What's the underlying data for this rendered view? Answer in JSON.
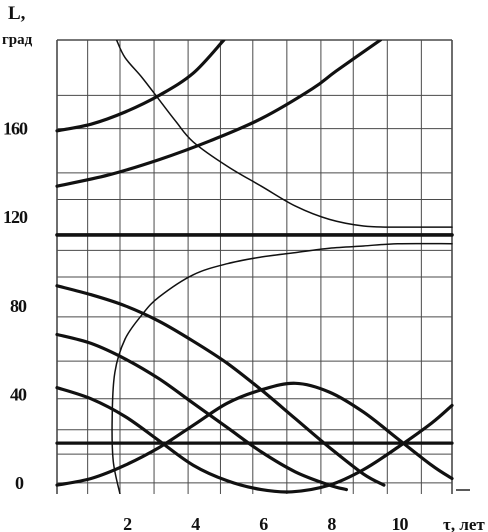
{
  "chart_data": {
    "type": "line",
    "ylabel": "L,",
    "yunit": "град",
    "xlabel": "τ, лет",
    "xlim": [
      0,
      11.6
    ],
    "ylim": [
      -5,
      200
    ],
    "x_ticks": [
      {
        "value": 2,
        "label": "2"
      },
      {
        "value": 4,
        "label": "4"
      },
      {
        "value": 6,
        "label": "6"
      },
      {
        "value": 8,
        "label": "8"
      },
      {
        "value": 10,
        "label": "10"
      }
    ],
    "y_ticks": [
      {
        "value": 0,
        "label": "0"
      },
      {
        "value": 40,
        "label": "40"
      },
      {
        "value": 80,
        "label": "80"
      },
      {
        "value": 120,
        "label": "120"
      },
      {
        "value": 160,
        "label": "160"
      }
    ],
    "grid": true,
    "grid_x": [
      0,
      0.9,
      1.85,
      2.85,
      3.85,
      4.8,
      5.75,
      6.75,
      7.75,
      8.7,
      9.7,
      10.7,
      11.6
    ],
    "grid_y": [
      0,
      13,
      24,
      38,
      55,
      75,
      93,
      105,
      128,
      140,
      160,
      175,
      200
    ],
    "series": [
      {
        "width": 3.2,
        "points": [
          [
            0,
            159
          ],
          [
            1,
            162
          ],
          [
            2,
            167.5
          ],
          [
            3,
            175
          ],
          [
            4,
            185
          ],
          [
            4.9,
            200
          ]
        ]
      },
      {
        "width": 3.2,
        "points": [
          [
            0,
            134
          ],
          [
            1.5,
            139
          ],
          [
            3,
            146
          ],
          [
            4.5,
            154.5
          ],
          [
            6,
            164.5
          ],
          [
            7.5,
            178
          ],
          [
            8.2,
            186
          ],
          [
            9.5,
            200
          ]
        ]
      },
      {
        "width": 3.6,
        "points": [
          [
            0,
            112
          ],
          [
            11.6,
            112
          ]
        ]
      },
      {
        "width": 3.2,
        "points": [
          [
            0,
            18
          ],
          [
            11.6,
            18
          ]
        ]
      },
      {
        "width": 3.2,
        "points": [
          [
            0,
            89
          ],
          [
            1,
            85
          ],
          [
            2,
            80
          ],
          [
            3,
            73
          ],
          [
            4,
            64
          ],
          [
            5,
            54
          ],
          [
            6,
            42
          ],
          [
            7,
            29
          ],
          [
            8,
            16
          ],
          [
            9,
            4
          ],
          [
            9.6,
            -1
          ]
        ]
      },
      {
        "width": 3.2,
        "points": [
          [
            0,
            67
          ],
          [
            1,
            63
          ],
          [
            2,
            56
          ],
          [
            3,
            47
          ],
          [
            4,
            36
          ],
          [
            5,
            25
          ],
          [
            6,
            14
          ],
          [
            7,
            5
          ],
          [
            8,
            -1
          ],
          [
            8.5,
            -3
          ]
        ]
      },
      {
        "width": 3.2,
        "points": [
          [
            0,
            43
          ],
          [
            1,
            38
          ],
          [
            2,
            30
          ],
          [
            3,
            19
          ],
          [
            4,
            8
          ],
          [
            5,
            1
          ],
          [
            6,
            -3
          ],
          [
            6.9,
            -4
          ],
          [
            8,
            -1
          ],
          [
            9,
            6
          ],
          [
            10,
            16
          ],
          [
            11,
            27
          ],
          [
            11.6,
            35
          ]
        ]
      },
      {
        "width": 3.2,
        "points": [
          [
            0,
            -1
          ],
          [
            1,
            2
          ],
          [
            2,
            8
          ],
          [
            3,
            16
          ],
          [
            4,
            26
          ],
          [
            5,
            36
          ],
          [
            6,
            42
          ],
          [
            7,
            45
          ],
          [
            8,
            41
          ],
          [
            9,
            32
          ],
          [
            10,
            20
          ],
          [
            11,
            8
          ],
          [
            11.6,
            2
          ]
        ]
      },
      {
        "width": 1.5,
        "points": [
          [
            1.75,
            200
          ],
          [
            2,
            192
          ],
          [
            2.5,
            183
          ],
          [
            3,
            173
          ],
          [
            3.5,
            163
          ],
          [
            4,
            154
          ],
          [
            5,
            143
          ],
          [
            6,
            134
          ],
          [
            7,
            125
          ],
          [
            8,
            119
          ],
          [
            9,
            116
          ],
          [
            10,
            115.5
          ],
          [
            11.6,
            115.5
          ]
        ]
      },
      {
        "width": 1.5,
        "points": [
          [
            1.85,
            -5
          ],
          [
            1.65,
            10
          ],
          [
            1.62,
            30
          ],
          [
            1.7,
            50
          ],
          [
            2,
            65
          ],
          [
            2.5,
            76
          ],
          [
            3,
            84
          ],
          [
            4,
            94
          ],
          [
            5,
            99
          ],
          [
            6,
            102
          ],
          [
            7,
            104
          ],
          [
            8,
            106
          ],
          [
            9,
            107
          ],
          [
            10,
            108
          ],
          [
            11.6,
            108
          ]
        ]
      }
    ]
  }
}
